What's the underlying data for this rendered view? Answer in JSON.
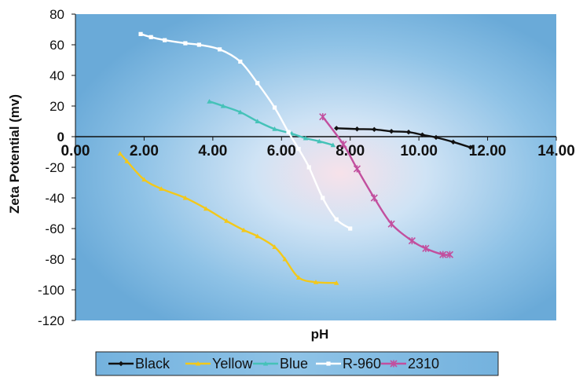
{
  "chart_data": {
    "type": "line",
    "title": "",
    "xlabel": "pH",
    "ylabel": "Zeta Potential (mv)",
    "xlim": [
      0,
      14
    ],
    "ylim": [
      -120,
      80
    ],
    "x_tick_labels": [
      "0.00",
      "2.00",
      "4.00",
      "6.00",
      "8.00",
      "10.00",
      "12.00",
      "14.00"
    ],
    "y_tick_labels": [
      "80",
      "60",
      "40",
      "20",
      "0",
      "-20",
      "-40",
      "-60",
      "-80",
      "-100",
      "-120"
    ],
    "legend_position": "bottom",
    "series": [
      {
        "name": "Black",
        "color": "#111111",
        "marker": "diamond",
        "points": [
          [
            7.6,
            5.5
          ],
          [
            8.2,
            5
          ],
          [
            8.7,
            4.7
          ],
          [
            9.2,
            3.5
          ],
          [
            9.7,
            3
          ],
          [
            10.1,
            1.2
          ],
          [
            10.5,
            -0.5
          ],
          [
            11.0,
            -3.5
          ],
          [
            11.5,
            -7
          ]
        ]
      },
      {
        "name": "Yellow",
        "color": "#f3c81a",
        "marker": "triangle",
        "points": [
          [
            1.3,
            -11
          ],
          [
            1.5,
            -16
          ],
          [
            2.0,
            -28
          ],
          [
            2.5,
            -34
          ],
          [
            3.2,
            -40
          ],
          [
            3.8,
            -47
          ],
          [
            4.4,
            -55
          ],
          [
            4.9,
            -61
          ],
          [
            5.3,
            -65
          ],
          [
            5.8,
            -72
          ],
          [
            6.1,
            -80
          ],
          [
            6.5,
            -92
          ],
          [
            7.0,
            -95
          ],
          [
            7.6,
            -95.5
          ]
        ]
      },
      {
        "name": "Blue",
        "color": "#45c2b8",
        "marker": "triangle",
        "points": [
          [
            3.9,
            23
          ],
          [
            4.3,
            20
          ],
          [
            4.8,
            16
          ],
          [
            5.3,
            10
          ],
          [
            5.8,
            5
          ],
          [
            6.3,
            2
          ],
          [
            6.7,
            -1
          ],
          [
            7.1,
            -3
          ],
          [
            7.5,
            -5.5
          ]
        ]
      },
      {
        "name": "R-960",
        "color": "#ffffff",
        "marker": "square",
        "points": [
          [
            1.9,
            67
          ],
          [
            2.2,
            65
          ],
          [
            2.6,
            63
          ],
          [
            3.2,
            61
          ],
          [
            3.6,
            60
          ],
          [
            4.2,
            57
          ],
          [
            4.8,
            49
          ],
          [
            5.3,
            35
          ],
          [
            5.8,
            19
          ],
          [
            6.2,
            3
          ],
          [
            6.5,
            -8
          ],
          [
            6.8,
            -20
          ],
          [
            7.2,
            -40
          ],
          [
            7.6,
            -54
          ],
          [
            8.0,
            -60
          ]
        ]
      },
      {
        "name": "2310",
        "color": "#c24f9e",
        "marker": "x",
        "points": [
          [
            7.2,
            13
          ],
          [
            7.8,
            -5
          ],
          [
            8.2,
            -21
          ],
          [
            8.7,
            -40
          ],
          [
            9.2,
            -57
          ],
          [
            9.8,
            -68
          ],
          [
            10.2,
            -73
          ],
          [
            10.7,
            -77
          ],
          [
            10.9,
            -77
          ]
        ]
      }
    ]
  }
}
